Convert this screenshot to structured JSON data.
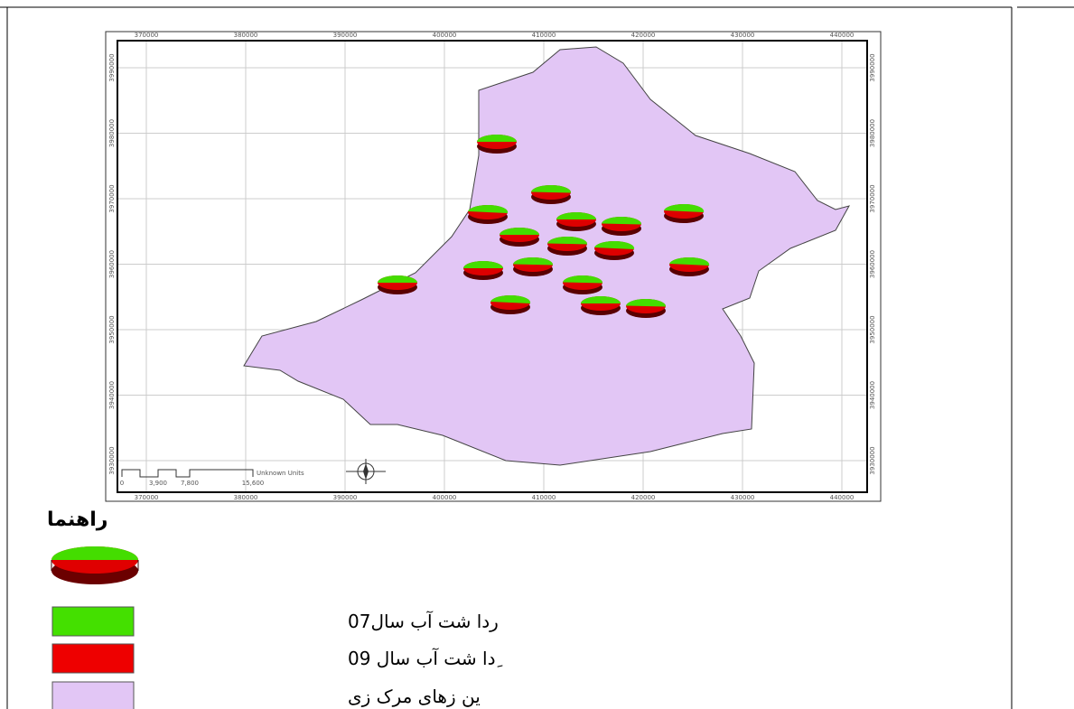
{
  "map": {
    "x_ticks": [
      "370000",
      "380000",
      "390000",
      "400000",
      "410000",
      "420000",
      "430000",
      "440000"
    ],
    "y_ticks": [
      "3990000",
      "3980000",
      "3970000",
      "3960000",
      "3950000",
      "3940000",
      "3930000"
    ],
    "scale_bar": {
      "labels": [
        "0",
        "3,900",
        "7,800",
        "15,600"
      ],
      "units": "Unknown Units"
    }
  },
  "legend": {
    "title": "راهنما",
    "items": [
      "ردا شت آب  سال07",
      "ِدا شت آب  سال 09",
      "ین زهای مرک زی"
    ]
  }
}
